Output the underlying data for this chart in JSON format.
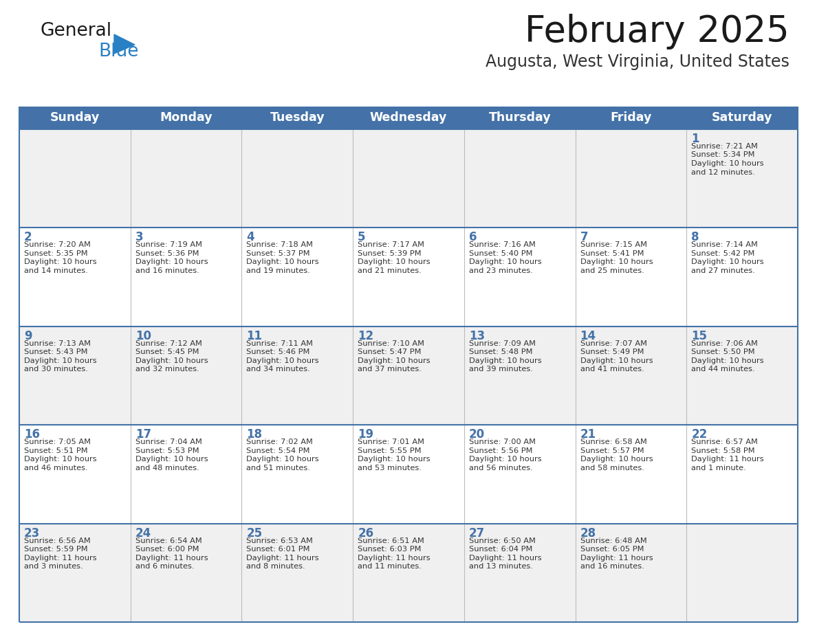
{
  "title": "February 2025",
  "subtitle": "Augusta, West Virginia, United States",
  "header_bg": "#4472a8",
  "header_text_color": "#FFFFFF",
  "border_color": "#4472a8",
  "row_line_color": "#4472a8",
  "days_of_week": [
    "Sunday",
    "Monday",
    "Tuesday",
    "Wednesday",
    "Thursday",
    "Friday",
    "Saturday"
  ],
  "title_color": "#1a1a1a",
  "subtitle_color": "#333333",
  "day_num_color": "#4472a8",
  "info_color": "#333333",
  "logo_general_color": "#1a1a1a",
  "logo_blue_color": "#2980C4",
  "row_bg_odd": "#F0F0F0",
  "row_bg_even": "#FFFFFF",
  "weeks": [
    [
      {
        "day": "",
        "info": ""
      },
      {
        "day": "",
        "info": ""
      },
      {
        "day": "",
        "info": ""
      },
      {
        "day": "",
        "info": ""
      },
      {
        "day": "",
        "info": ""
      },
      {
        "day": "",
        "info": ""
      },
      {
        "day": "1",
        "info": "Sunrise: 7:21 AM\nSunset: 5:34 PM\nDaylight: 10 hours\nand 12 minutes."
      }
    ],
    [
      {
        "day": "2",
        "info": "Sunrise: 7:20 AM\nSunset: 5:35 PM\nDaylight: 10 hours\nand 14 minutes."
      },
      {
        "day": "3",
        "info": "Sunrise: 7:19 AM\nSunset: 5:36 PM\nDaylight: 10 hours\nand 16 minutes."
      },
      {
        "day": "4",
        "info": "Sunrise: 7:18 AM\nSunset: 5:37 PM\nDaylight: 10 hours\nand 19 minutes."
      },
      {
        "day": "5",
        "info": "Sunrise: 7:17 AM\nSunset: 5:39 PM\nDaylight: 10 hours\nand 21 minutes."
      },
      {
        "day": "6",
        "info": "Sunrise: 7:16 AM\nSunset: 5:40 PM\nDaylight: 10 hours\nand 23 minutes."
      },
      {
        "day": "7",
        "info": "Sunrise: 7:15 AM\nSunset: 5:41 PM\nDaylight: 10 hours\nand 25 minutes."
      },
      {
        "day": "8",
        "info": "Sunrise: 7:14 AM\nSunset: 5:42 PM\nDaylight: 10 hours\nand 27 minutes."
      }
    ],
    [
      {
        "day": "9",
        "info": "Sunrise: 7:13 AM\nSunset: 5:43 PM\nDaylight: 10 hours\nand 30 minutes."
      },
      {
        "day": "10",
        "info": "Sunrise: 7:12 AM\nSunset: 5:45 PM\nDaylight: 10 hours\nand 32 minutes."
      },
      {
        "day": "11",
        "info": "Sunrise: 7:11 AM\nSunset: 5:46 PM\nDaylight: 10 hours\nand 34 minutes."
      },
      {
        "day": "12",
        "info": "Sunrise: 7:10 AM\nSunset: 5:47 PM\nDaylight: 10 hours\nand 37 minutes."
      },
      {
        "day": "13",
        "info": "Sunrise: 7:09 AM\nSunset: 5:48 PM\nDaylight: 10 hours\nand 39 minutes."
      },
      {
        "day": "14",
        "info": "Sunrise: 7:07 AM\nSunset: 5:49 PM\nDaylight: 10 hours\nand 41 minutes."
      },
      {
        "day": "15",
        "info": "Sunrise: 7:06 AM\nSunset: 5:50 PM\nDaylight: 10 hours\nand 44 minutes."
      }
    ],
    [
      {
        "day": "16",
        "info": "Sunrise: 7:05 AM\nSunset: 5:51 PM\nDaylight: 10 hours\nand 46 minutes."
      },
      {
        "day": "17",
        "info": "Sunrise: 7:04 AM\nSunset: 5:53 PM\nDaylight: 10 hours\nand 48 minutes."
      },
      {
        "day": "18",
        "info": "Sunrise: 7:02 AM\nSunset: 5:54 PM\nDaylight: 10 hours\nand 51 minutes."
      },
      {
        "day": "19",
        "info": "Sunrise: 7:01 AM\nSunset: 5:55 PM\nDaylight: 10 hours\nand 53 minutes."
      },
      {
        "day": "20",
        "info": "Sunrise: 7:00 AM\nSunset: 5:56 PM\nDaylight: 10 hours\nand 56 minutes."
      },
      {
        "day": "21",
        "info": "Sunrise: 6:58 AM\nSunset: 5:57 PM\nDaylight: 10 hours\nand 58 minutes."
      },
      {
        "day": "22",
        "info": "Sunrise: 6:57 AM\nSunset: 5:58 PM\nDaylight: 11 hours\nand 1 minute."
      }
    ],
    [
      {
        "day": "23",
        "info": "Sunrise: 6:56 AM\nSunset: 5:59 PM\nDaylight: 11 hours\nand 3 minutes."
      },
      {
        "day": "24",
        "info": "Sunrise: 6:54 AM\nSunset: 6:00 PM\nDaylight: 11 hours\nand 6 minutes."
      },
      {
        "day": "25",
        "info": "Sunrise: 6:53 AM\nSunset: 6:01 PM\nDaylight: 11 hours\nand 8 minutes."
      },
      {
        "day": "26",
        "info": "Sunrise: 6:51 AM\nSunset: 6:03 PM\nDaylight: 11 hours\nand 11 minutes."
      },
      {
        "day": "27",
        "info": "Sunrise: 6:50 AM\nSunset: 6:04 PM\nDaylight: 11 hours\nand 13 minutes."
      },
      {
        "day": "28",
        "info": "Sunrise: 6:48 AM\nSunset: 6:05 PM\nDaylight: 11 hours\nand 16 minutes."
      },
      {
        "day": "",
        "info": ""
      }
    ]
  ]
}
